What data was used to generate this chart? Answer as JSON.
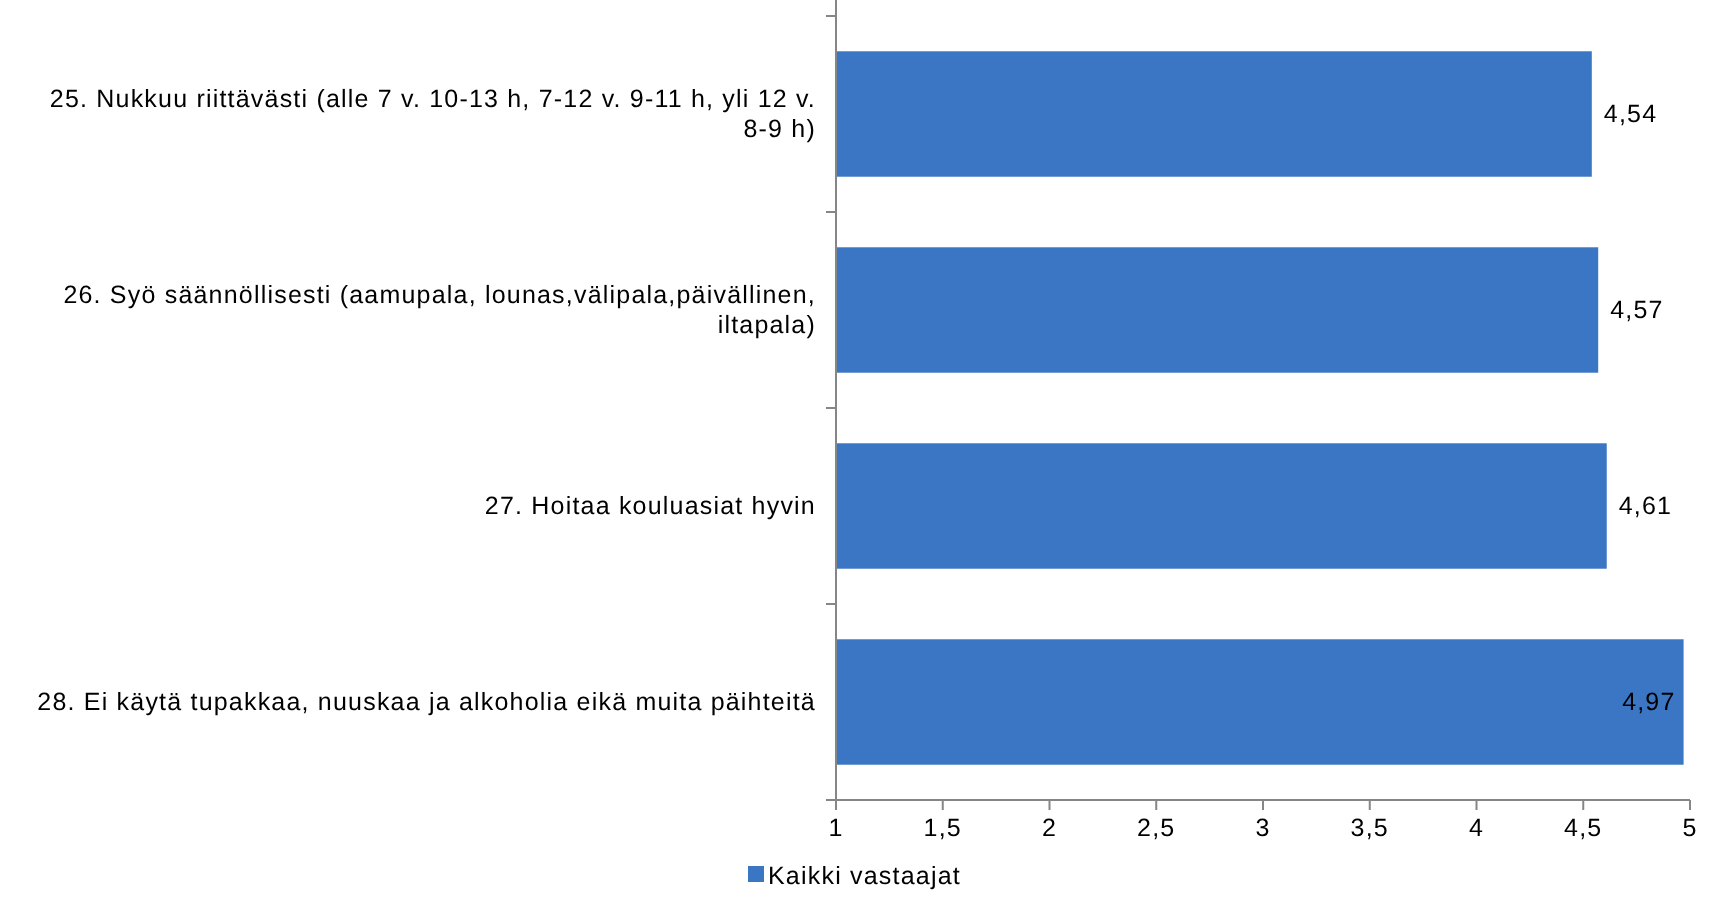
{
  "chart_data": {
    "type": "bar",
    "orientation": "horizontal",
    "categories": [
      "25. Nukkuu riittävästi (alle 7 v. 10-13 h, 7-12 v. 9-11 h, yli 12 v. 8-9 h)",
      "26. Syö säännöllisesti (aamupala, lounas,välipala,päivällinen, iltapala)",
      "27. Hoitaa kouluasiat hyvin",
      "28. Ei käytä tupakkaa, nuuskaa ja alkoholia eikä muita päihteitä"
    ],
    "series": [
      {
        "name": "Kaikki vastaajat",
        "color": "#3a76c4",
        "values": [
          4.54,
          4.57,
          4.61,
          4.97
        ],
        "value_labels": [
          "4,54",
          "4,57",
          "4,61",
          "4,97"
        ]
      }
    ],
    "xlim": [
      1,
      5
    ],
    "xticks": [
      1,
      {
        "value": 1.5,
        "label": "1,5"
      },
      2,
      {
        "value": 2.5,
        "label": "2,5"
      },
      3,
      {
        "value": 3.5,
        "label": "3,5"
      },
      4,
      {
        "value": 4.5,
        "label": "4,5"
      },
      5
    ],
    "grid": false,
    "legend": "bottom left"
  }
}
